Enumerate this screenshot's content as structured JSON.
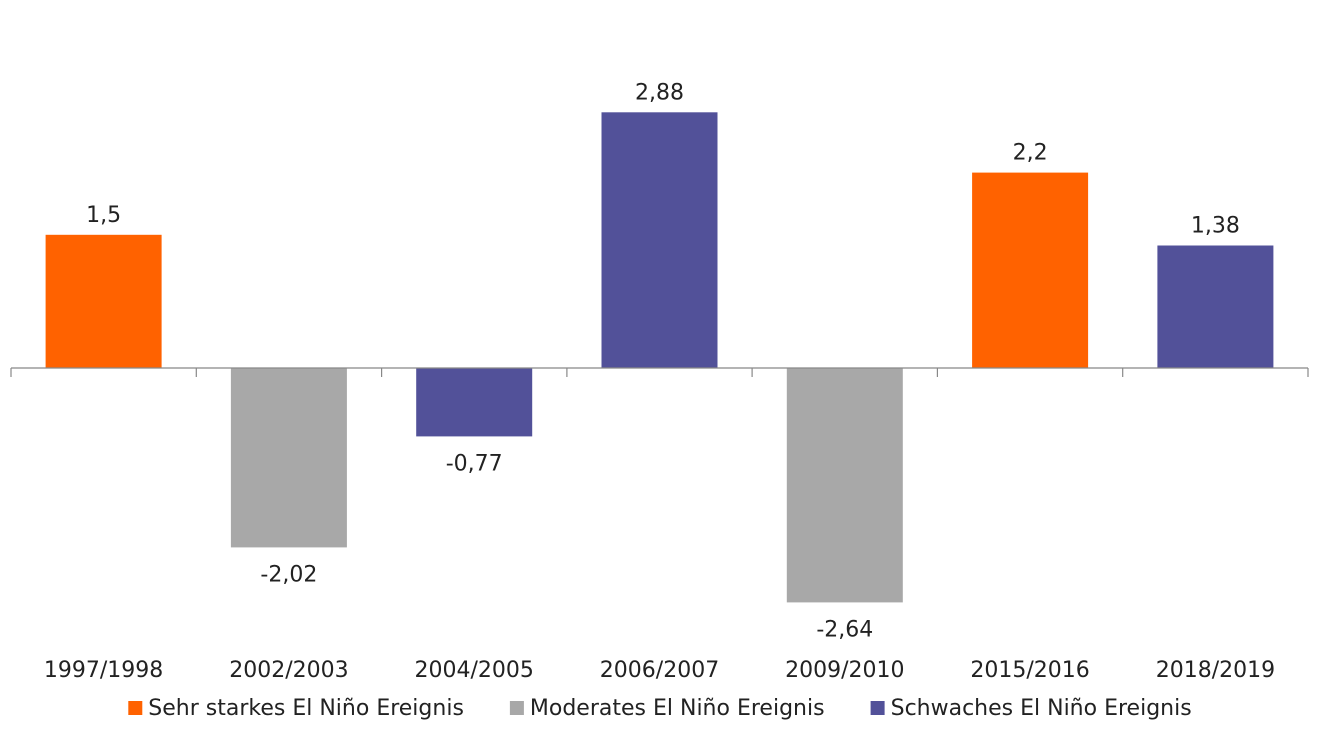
{
  "chart_data": {
    "type": "bar",
    "title": "",
    "xlabel": "",
    "ylabel": "",
    "categories": [
      "1997/1998",
      "2002/2003",
      "2004/2005",
      "2006/2007",
      "2009/2010",
      "2015/2016",
      "2018/2019"
    ],
    "values": [
      1.5,
      -2.02,
      -0.77,
      2.88,
      -2.64,
      2.2,
      1.38
    ],
    "value_labels": [
      "1,5",
      "-2,02",
      "-0,77",
      "2,88",
      "-2,64",
      "2,2",
      "1,38"
    ],
    "series_index": [
      0,
      1,
      2,
      2,
      1,
      0,
      2
    ],
    "series": [
      {
        "name": "Sehr starkes El Niño Ereignis",
        "color": "#FF6200"
      },
      {
        "name": "Moderates El Niño Ereignis",
        "color": "#A8A8A8"
      },
      {
        "name": "Schwaches El Niño Ereignis",
        "color": "#525199"
      }
    ],
    "ylim": [
      -3.2,
      4.15
    ],
    "grid": false,
    "legend_position": "bottom"
  }
}
